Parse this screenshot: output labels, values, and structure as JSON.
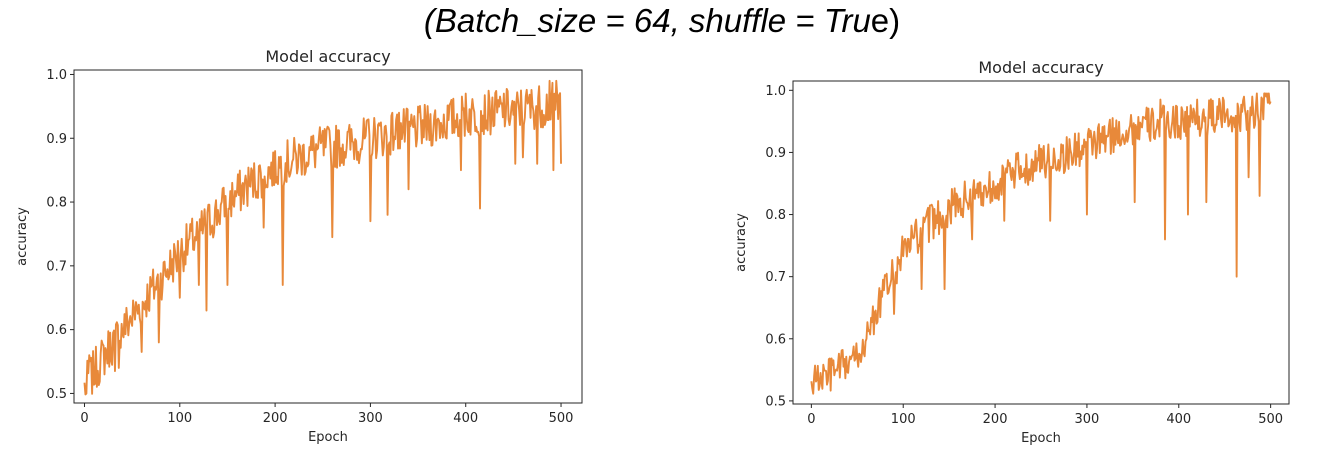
{
  "figure_title": {
    "italic_part": "(Batch_size = 64, shuffle = Tru",
    "upright_part": "e)"
  },
  "colors": {
    "line": "#e8893a",
    "axes": "#262626"
  },
  "chart_data": [
    {
      "type": "line",
      "title": "Model accuracy",
      "xlabel": "Epoch",
      "ylabel": "accuracy",
      "xlim": [
        -11,
        522
      ],
      "ylim": [
        0.485,
        1.007
      ],
      "xticks": [
        0,
        100,
        200,
        300,
        400,
        500
      ],
      "yticks": [
        0.5,
        0.6,
        0.7,
        0.8,
        0.9,
        1.0
      ],
      "ytick_labels": [
        "0.5",
        "0.6",
        "0.7",
        "0.8",
        "0.9",
        "1.0"
      ],
      "grid": false,
      "legend": "none",
      "series": [
        {
          "curve": [
            [
              0,
              0.51
            ],
            [
              25,
              0.57
            ],
            [
              50,
              0.62
            ],
            [
              75,
              0.67
            ],
            [
              100,
              0.72
            ],
            [
              125,
              0.76
            ],
            [
              150,
              0.8
            ],
            [
              175,
              0.83
            ],
            [
              200,
              0.855
            ],
            [
              225,
              0.87
            ],
            [
              250,
              0.885
            ],
            [
              275,
              0.89
            ],
            [
              300,
              0.9
            ],
            [
              325,
              0.91
            ],
            [
              350,
              0.915
            ],
            [
              375,
              0.925
            ],
            [
              400,
              0.935
            ],
            [
              425,
              0.94
            ],
            [
              450,
              0.945
            ],
            [
              475,
              0.95
            ],
            [
              500,
              0.955
            ]
          ],
          "noise": 0.035,
          "dips": [
            [
              2,
              0.5
            ],
            [
              5,
              0.56
            ],
            [
              32,
              0.535
            ],
            [
              36,
              0.54
            ],
            [
              60,
              0.565
            ],
            [
              78,
              0.58
            ],
            [
              100,
              0.65
            ],
            [
              120,
              0.67
            ],
            [
              128,
              0.63
            ],
            [
              150,
              0.67
            ],
            [
              188,
              0.76
            ],
            [
              208,
              0.67
            ],
            [
              260,
              0.745
            ],
            [
              300,
              0.77
            ],
            [
              318,
              0.78
            ],
            [
              340,
              0.82
            ],
            [
              395,
              0.85
            ],
            [
              415,
              0.79
            ],
            [
              452,
              0.86
            ],
            [
              460,
              0.87
            ],
            [
              475,
              0.86
            ],
            [
              492,
              0.85
            ],
            [
              497,
              0.93
            ],
            [
              500,
              0.86
            ],
            [
              501,
              0.88
            ]
          ],
          "peaks": [
            [
              200,
              0.88
            ],
            [
              230,
              0.89
            ],
            [
              330,
              0.94
            ],
            [
              400,
              0.97
            ],
            [
              440,
              0.97
            ],
            [
              488,
              0.99
            ],
            [
              495,
              0.99
            ]
          ]
        }
      ]
    },
    {
      "type": "line",
      "title": "Model accuracy",
      "xlabel": "Epoch",
      "ylabel": "accuracy",
      "xlim": [
        -20,
        520
      ],
      "ylim": [
        0.495,
        1.015
      ],
      "xticks": [
        0,
        100,
        200,
        300,
        400,
        500
      ],
      "yticks": [
        0.5,
        0.6,
        0.7,
        0.8,
        0.9,
        1.0
      ],
      "ytick_labels": [
        "0.5",
        "0.6",
        "0.7",
        "0.8",
        "0.9",
        "1.0"
      ],
      "grid": false,
      "legend": "none",
      "series": [
        {
          "curve": [
            [
              0,
              0.53
            ],
            [
              25,
              0.545
            ],
            [
              50,
              0.57
            ],
            [
              75,
              0.66
            ],
            [
              100,
              0.74
            ],
            [
              125,
              0.78
            ],
            [
              150,
              0.81
            ],
            [
              175,
              0.83
            ],
            [
              200,
              0.85
            ],
            [
              225,
              0.87
            ],
            [
              250,
              0.885
            ],
            [
              275,
              0.895
            ],
            [
              300,
              0.91
            ],
            [
              325,
              0.925
            ],
            [
              350,
              0.94
            ],
            [
              375,
              0.945
            ],
            [
              400,
              0.95
            ],
            [
              425,
              0.955
            ],
            [
              450,
              0.96
            ],
            [
              475,
              0.965
            ],
            [
              500,
              0.975
            ]
          ],
          "noise": 0.03,
          "dips": [
            [
              1,
              0.52
            ],
            [
              10,
              0.545
            ],
            [
              35,
              0.555
            ],
            [
              60,
              0.6
            ],
            [
              90,
              0.64
            ],
            [
              120,
              0.68
            ],
            [
              145,
              0.68
            ],
            [
              175,
              0.76
            ],
            [
              210,
              0.79
            ],
            [
              260,
              0.79
            ],
            [
              300,
              0.8
            ],
            [
              352,
              0.82
            ],
            [
              385,
              0.76
            ],
            [
              410,
              0.8
            ],
            [
              430,
              0.82
            ],
            [
              463,
              0.7
            ],
            [
              476,
              0.86
            ],
            [
              488,
              0.83
            ],
            [
              497,
              0.98
            ]
          ],
          "peaks": [
            [
              380,
              0.985
            ],
            [
              420,
              0.985
            ],
            [
              480,
              0.99
            ],
            [
              495,
              0.99
            ]
          ]
        }
      ]
    }
  ]
}
